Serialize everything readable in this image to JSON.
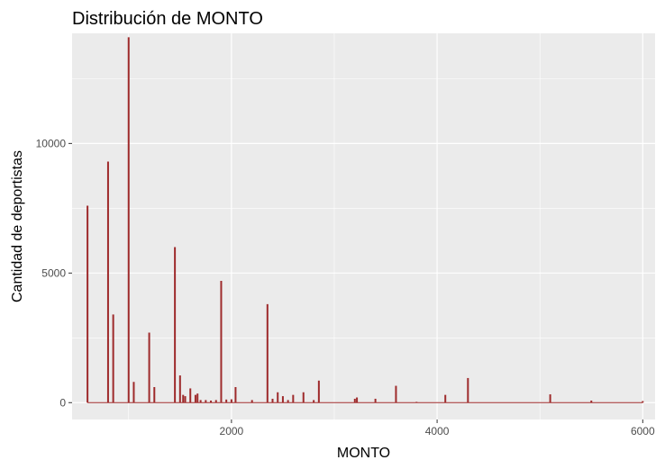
{
  "chart_data": {
    "type": "bar",
    "title": "Distribución de MONTO",
    "xlabel": "MONTO",
    "ylabel": "Cantidad de deportistas",
    "xlim": [
      450,
      6120
    ],
    "ylim": [
      -650,
      14250
    ],
    "x_ticks": [
      2000,
      4000,
      6000
    ],
    "x_tick_labels": [
      "2000",
      "4000",
      "6000"
    ],
    "y_ticks": [
      0,
      5000,
      10000
    ],
    "y_tick_labels": [
      "0",
      "5000",
      "10000"
    ],
    "grid": true,
    "legend": "none",
    "colors": {
      "panel_background": "#ebebeb",
      "grid": "#ffffff",
      "bar": "#9e2a2b"
    },
    "x": [
      600,
      800,
      850,
      1000,
      1050,
      1200,
      1250,
      1450,
      1500,
      1530,
      1550,
      1600,
      1650,
      1670,
      1700,
      1750,
      1800,
      1850,
      1900,
      1950,
      2000,
      2040,
      2200,
      2350,
      2400,
      2450,
      2500,
      2550,
      2600,
      2700,
      2800,
      2850,
      3200,
      3220,
      3400,
      3600,
      3800,
      4080,
      4300,
      5100,
      5500,
      6000
    ],
    "values": [
      7600,
      9300,
      3400,
      14100,
      800,
      2700,
      600,
      6000,
      1050,
      300,
      250,
      550,
      300,
      350,
      100,
      100,
      80,
      100,
      4700,
      120,
      130,
      600,
      100,
      3800,
      150,
      400,
      250,
      100,
      300,
      400,
      100,
      850,
      150,
      200,
      150,
      650,
      30,
      300,
      950,
      320,
      80,
      60
    ]
  }
}
